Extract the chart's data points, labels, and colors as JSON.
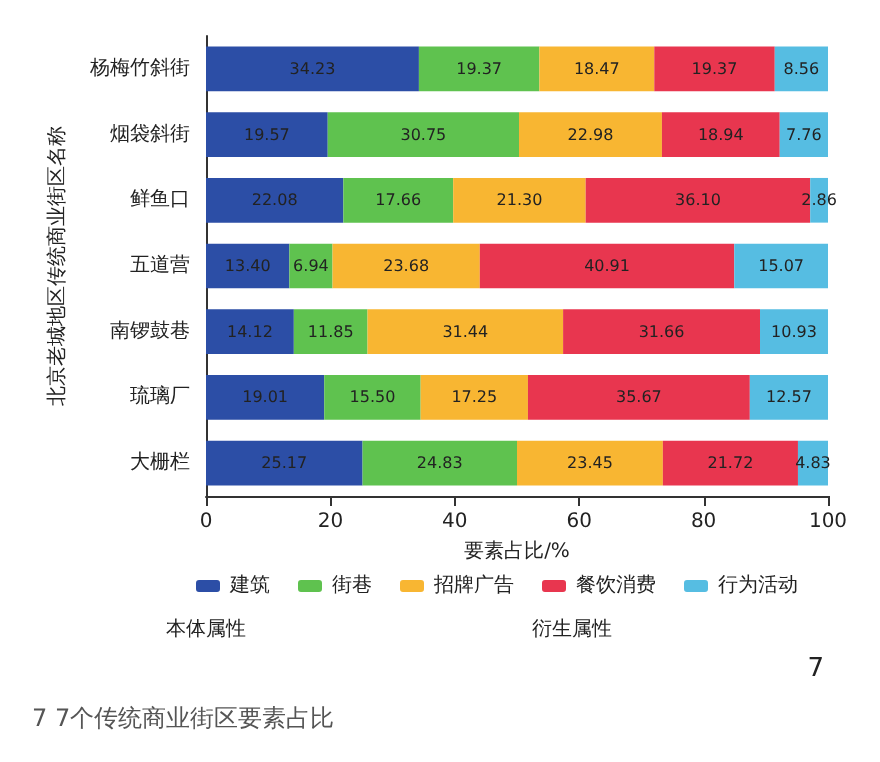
{
  "chart_data": {
    "type": "bar",
    "orientation": "horizontal",
    "stacked": true,
    "ylabel": "北京老城地区传统商业街区名称",
    "xlabel": "要素占比/%",
    "categories": [
      "杨梅竹斜街",
      "烟袋斜街",
      "鲜鱼口",
      "五道营",
      "南锣鼓巷",
      "琉璃厂",
      "大栅栏"
    ],
    "series": [
      {
        "name": "建筑",
        "color": "#2c4ea6",
        "values": [
          34.23,
          19.57,
          22.08,
          13.4,
          14.12,
          19.01,
          25.17
        ],
        "value_labels": [
          "34.23",
          "19.57",
          "22.08",
          "13.40",
          "14.12",
          "19.01",
          "25.17"
        ]
      },
      {
        "name": "街巷",
        "color": "#5fc24f",
        "values": [
          19.37,
          30.75,
          17.66,
          6.94,
          11.85,
          15.5,
          24.83
        ],
        "value_labels": [
          "19.37",
          "30.75",
          "17.66",
          "6.94",
          "11.85",
          "15.50",
          "24.83"
        ]
      },
      {
        "name": "招牌广告",
        "color": "#f8b632",
        "values": [
          18.47,
          22.98,
          21.3,
          23.68,
          31.44,
          17.25,
          23.45
        ],
        "value_labels": [
          "18.47",
          "22.98",
          "21.30",
          "23.68",
          "31.44",
          "17.25",
          "23.45"
        ]
      },
      {
        "name": "餐饮消费",
        "color": "#e8364f",
        "values": [
          19.37,
          18.94,
          36.1,
          40.91,
          31.66,
          35.67,
          21.72
        ],
        "value_labels": [
          "19.37",
          "18.94",
          "36.10",
          "40.91",
          "31.66",
          "35.67",
          "21.72"
        ]
      },
      {
        "name": "行为活动",
        "color": "#56bde2",
        "values": [
          8.56,
          7.76,
          2.86,
          15.07,
          10.93,
          12.57,
          4.83
        ],
        "value_labels": [
          "8.56",
          "7.76",
          "2.86",
          "15.07",
          "10.93",
          "12.57",
          "4.83"
        ]
      }
    ],
    "xlim": [
      0,
      100
    ],
    "xticks": [
      0,
      20,
      40,
      60,
      80,
      100
    ],
    "grid": false,
    "legend": "bottom",
    "annotations": [
      "本体属性",
      "衍生属性",
      "7",
      "7 7个传统商业街区要素占比"
    ]
  }
}
